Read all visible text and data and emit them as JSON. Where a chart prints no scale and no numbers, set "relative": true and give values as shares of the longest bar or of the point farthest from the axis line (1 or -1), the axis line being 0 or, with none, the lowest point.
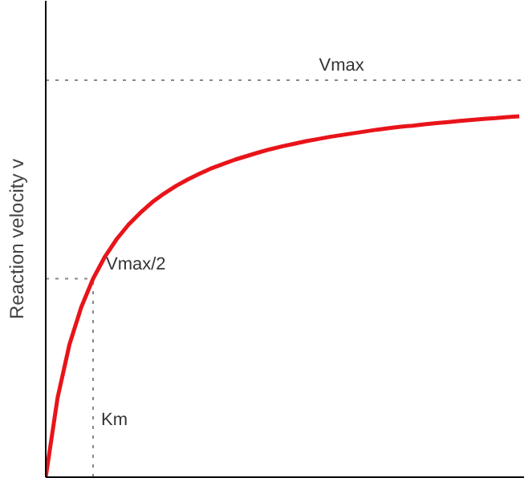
{
  "chart_data": {
    "type": "line",
    "relative": true,
    "ylabel": "Reaction velocity v",
    "categories": [
      null,
      null,
      null,
      null,
      null,
      null,
      null,
      null,
      null,
      null,
      null,
      null,
      null,
      null,
      null,
      null,
      null,
      null,
      null,
      null,
      null,
      null,
      null,
      null,
      null,
      null,
      null,
      null,
      null,
      null,
      null,
      null,
      null,
      null,
      null,
      null,
      null,
      null,
      null,
      null,
      null
    ],
    "series": [
      {
        "color": "#e8141a",
        "values": [
          0,
          0.22,
          0.367,
          0.471,
          0.55,
          0.611,
          0.66,
          0.7,
          0.733,
          0.762,
          0.786,
          0.807,
          0.825,
          0.841,
          0.856,
          0.868,
          0.88,
          0.89,
          0.9,
          0.909,
          0.917,
          0.924,
          0.931,
          0.937,
          0.943,
          0.948,
          0.953,
          0.958,
          0.963,
          0.967,
          0.971,
          0.974,
          0.978,
          0.981,
          0.984,
          0.987,
          0.99,
          0.993,
          0.995,
          0.998,
          1.0
        ]
      }
    ],
    "ref_lines": [
      {
        "axis": "y",
        "value": 1.1,
        "label": "Vmax",
        "color": "#888888",
        "line_style": "dotted"
      },
      {
        "axis": "y",
        "value": 0.55,
        "label": "Vmax/2",
        "color": "#888888",
        "line_style": "dotted"
      }
    ],
    "annotations": [
      "Km"
    ],
    "grid": false,
    "marker": "none",
    "line_style": "solid"
  }
}
